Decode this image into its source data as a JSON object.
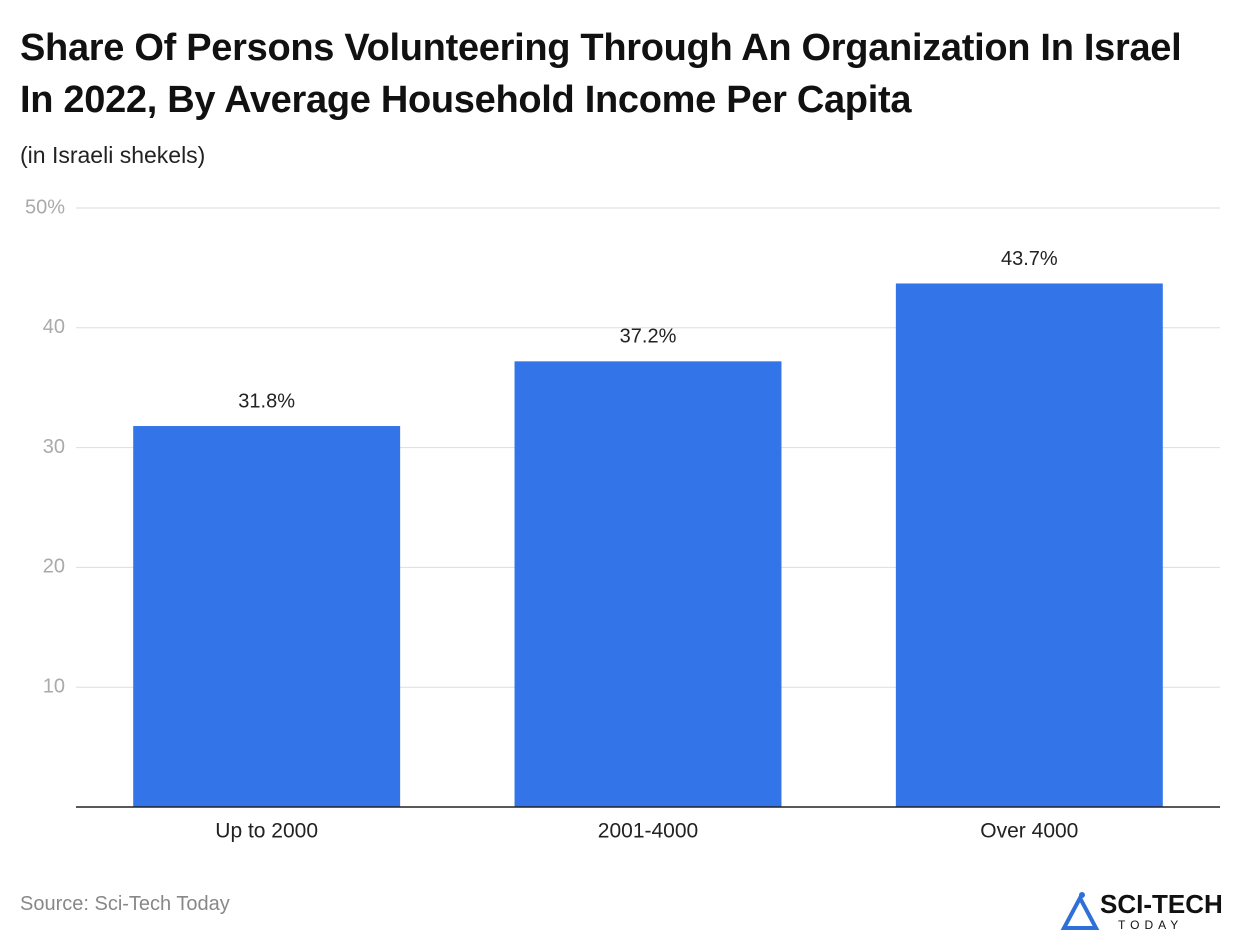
{
  "chart_data": {
    "type": "bar",
    "title": "Share Of Persons Volunteering Through An Organization In Israel In 2022, By Average Household Income Per Capita",
    "subtitle": "(in Israeli shekels)",
    "categories": [
      "Up to 2000",
      "2001-4000",
      "Over 4000"
    ],
    "values": [
      31.8,
      37.2,
      43.7
    ],
    "value_labels": [
      "31.8%",
      "37.2%",
      "43.7%"
    ],
    "color": "#3375e8",
    "ylim": [
      0,
      50
    ],
    "yticks": [
      10,
      20,
      30,
      40,
      {
        "value": 50,
        "label": "50%"
      }
    ],
    "grid": true,
    "source": "Source: Sci-Tech Today",
    "logo": {
      "name": "SCI-TECH",
      "tagline": "TODAY"
    }
  }
}
